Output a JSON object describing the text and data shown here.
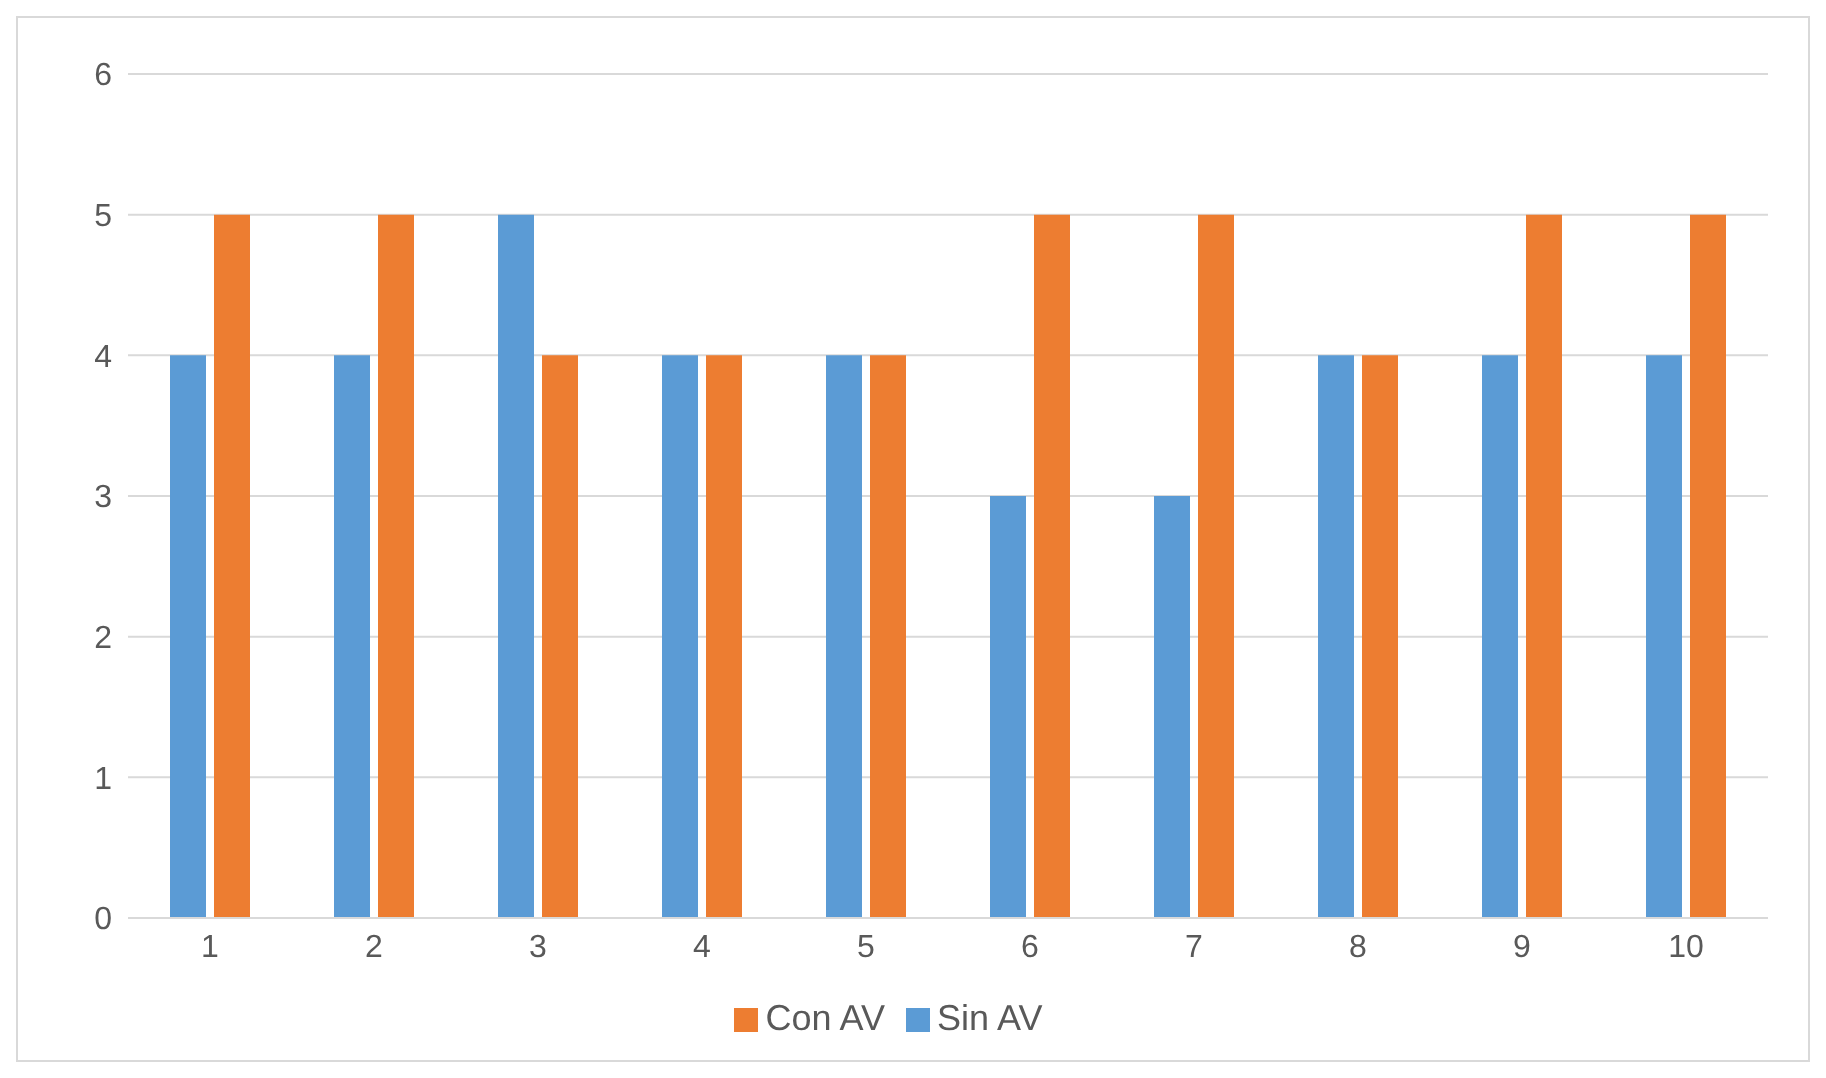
{
  "chart_data": {
    "type": "bar",
    "categories": [
      "1",
      "2",
      "3",
      "4",
      "5",
      "6",
      "7",
      "8",
      "9",
      "10"
    ],
    "series": [
      {
        "name": "Sin AV",
        "color": "#5b9bd5",
        "values": [
          4,
          4,
          5,
          4,
          4,
          3,
          3,
          4,
          4,
          4
        ]
      },
      {
        "name": "Con AV",
        "color": "#ed7d31",
        "values": [
          5,
          5,
          4,
          4,
          4,
          5,
          5,
          4,
          5,
          5
        ]
      }
    ],
    "ylim": [
      0,
      6
    ],
    "yticks": [
      0,
      1,
      2,
      3,
      4,
      5,
      6
    ],
    "grid": "y",
    "legend": "bottom"
  }
}
